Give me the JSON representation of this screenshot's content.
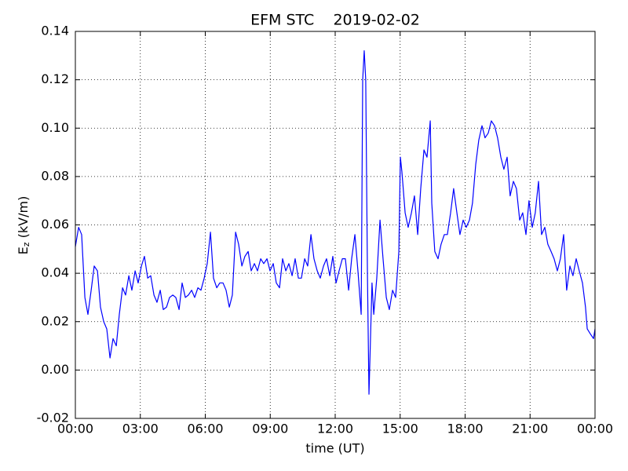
{
  "chart_data": {
    "type": "line",
    "title": "EFM STC    2019-02-02",
    "xlabel": "time (UT)",
    "ylabel": [
      "E",
      "z",
      " (kV/m)"
    ],
    "color": "#0000ff",
    "grid": true,
    "xlim": [
      0,
      24
    ],
    "xticks": [
      {
        "value": 0,
        "label": "00:00"
      },
      {
        "value": 3,
        "label": "03:00"
      },
      {
        "value": 6,
        "label": "06:00"
      },
      {
        "value": 9,
        "label": "09:00"
      },
      {
        "value": 12,
        "label": "12:00"
      },
      {
        "value": 15,
        "label": "15:00"
      },
      {
        "value": 18,
        "label": "18:00"
      },
      {
        "value": 21,
        "label": "21:00"
      },
      {
        "value": 24,
        "label": "00:00"
      }
    ],
    "ylim": [
      -0.02,
      0.14
    ],
    "yticks": [
      -0.02,
      {
        "value": 0,
        "label": "0.00"
      },
      0.02,
      0.04,
      0.06,
      0.08,
      {
        "value": 0.1,
        "label": "0.10"
      },
      0.12,
      0.14
    ],
    "x": [
      0,
      0.15,
      0.29,
      0.44,
      0.58,
      0.73,
      0.87,
      1.02,
      1.16,
      1.31,
      1.45,
      1.6,
      1.74,
      1.89,
      2.03,
      2.18,
      2.32,
      2.47,
      2.61,
      2.76,
      2.9,
      3.05,
      3.19,
      3.34,
      3.48,
      3.63,
      3.77,
      3.92,
      4.06,
      4.21,
      4.35,
      4.5,
      4.64,
      4.79,
      4.93,
      5.08,
      5.22,
      5.37,
      5.51,
      5.66,
      5.8,
      5.95,
      6.09,
      6.24,
      6.38,
      6.53,
      6.67,
      6.82,
      6.96,
      7.11,
      7.25,
      7.4,
      7.54,
      7.69,
      7.83,
      7.98,
      8.12,
      8.27,
      8.41,
      8.56,
      8.7,
      8.85,
      8.99,
      9.14,
      9.28,
      9.43,
      9.57,
      9.72,
      9.86,
      10.01,
      10.15,
      10.3,
      10.44,
      10.59,
      10.73,
      10.88,
      11.02,
      11.17,
      11.31,
      11.46,
      11.6,
      11.75,
      11.89,
      12.04,
      12.18,
      12.33,
      12.47,
      12.62,
      12.76,
      12.91,
      13.05,
      13.2,
      13.27,
      13.34,
      13.41,
      13.49,
      13.56,
      13.63,
      13.7,
      13.78,
      13.92,
      14.07,
      14.21,
      14.36,
      14.5,
      14.65,
      14.79,
      14.94,
      15.01,
      15.08,
      15.23,
      15.37,
      15.52,
      15.66,
      15.81,
      15.95,
      16.1,
      16.24,
      16.39,
      16.46,
      16.6,
      16.75,
      16.89,
      17.04,
      17.18,
      17.33,
      17.47,
      17.62,
      17.76,
      17.91,
      18.05,
      18.2,
      18.34,
      18.49,
      18.63,
      18.78,
      18.92,
      19.07,
      19.21,
      19.36,
      19.5,
      19.65,
      19.79,
      19.94,
      20.08,
      20.23,
      20.37,
      20.52,
      20.66,
      20.81,
      20.95,
      21.1,
      21.24,
      21.39,
      21.53,
      21.68,
      21.82,
      21.97,
      22.11,
      22.26,
      22.4,
      22.55,
      22.69,
      22.84,
      22.98,
      23.13,
      23.27,
      23.42,
      23.56,
      23.64,
      23.78,
      23.93,
      24
    ],
    "values": [
      0.051,
      0.059,
      0.056,
      0.03,
      0.023,
      0.033,
      0.043,
      0.041,
      0.026,
      0.02,
      0.017,
      0.005,
      0.013,
      0.01,
      0.023,
      0.034,
      0.031,
      0.039,
      0.033,
      0.041,
      0.036,
      0.043,
      0.047,
      0.038,
      0.039,
      0.031,
      0.028,
      0.033,
      0.025,
      0.026,
      0.03,
      0.031,
      0.03,
      0.025,
      0.036,
      0.03,
      0.031,
      0.033,
      0.03,
      0.034,
      0.033,
      0.038,
      0.044,
      0.057,
      0.038,
      0.034,
      0.036,
      0.036,
      0.033,
      0.026,
      0.031,
      0.057,
      0.052,
      0.043,
      0.047,
      0.049,
      0.041,
      0.044,
      0.041,
      0.046,
      0.044,
      0.046,
      0.041,
      0.044,
      0.036,
      0.034,
      0.046,
      0.041,
      0.044,
      0.039,
      0.046,
      0.038,
      0.038,
      0.046,
      0.043,
      0.056,
      0.046,
      0.041,
      0.038,
      0.043,
      0.046,
      0.039,
      0.047,
      0.036,
      0.041,
      0.046,
      0.046,
      0.033,
      0.046,
      0.056,
      0.041,
      0.023,
      0.12,
      0.132,
      0.12,
      0.039,
      -0.01,
      0.013,
      0.036,
      0.023,
      0.038,
      0.062,
      0.046,
      0.03,
      0.025,
      0.033,
      0.03,
      0.049,
      0.088,
      0.082,
      0.065,
      0.059,
      0.065,
      0.072,
      0.056,
      0.075,
      0.091,
      0.088,
      0.103,
      0.069,
      0.049,
      0.046,
      0.052,
      0.056,
      0.056,
      0.065,
      0.075,
      0.065,
      0.056,
      0.062,
      0.059,
      0.062,
      0.069,
      0.085,
      0.095,
      0.101,
      0.096,
      0.098,
      0.103,
      0.101,
      0.096,
      0.088,
      0.083,
      0.088,
      0.072,
      0.078,
      0.075,
      0.062,
      0.065,
      0.056,
      0.07,
      0.059,
      0.065,
      0.078,
      0.056,
      0.059,
      0.052,
      0.049,
      0.046,
      0.041,
      0.046,
      0.056,
      0.033,
      0.043,
      0.039,
      0.046,
      0.041,
      0.036,
      0.026,
      0.017,
      0.015,
      0.013,
      0.017
    ]
  }
}
